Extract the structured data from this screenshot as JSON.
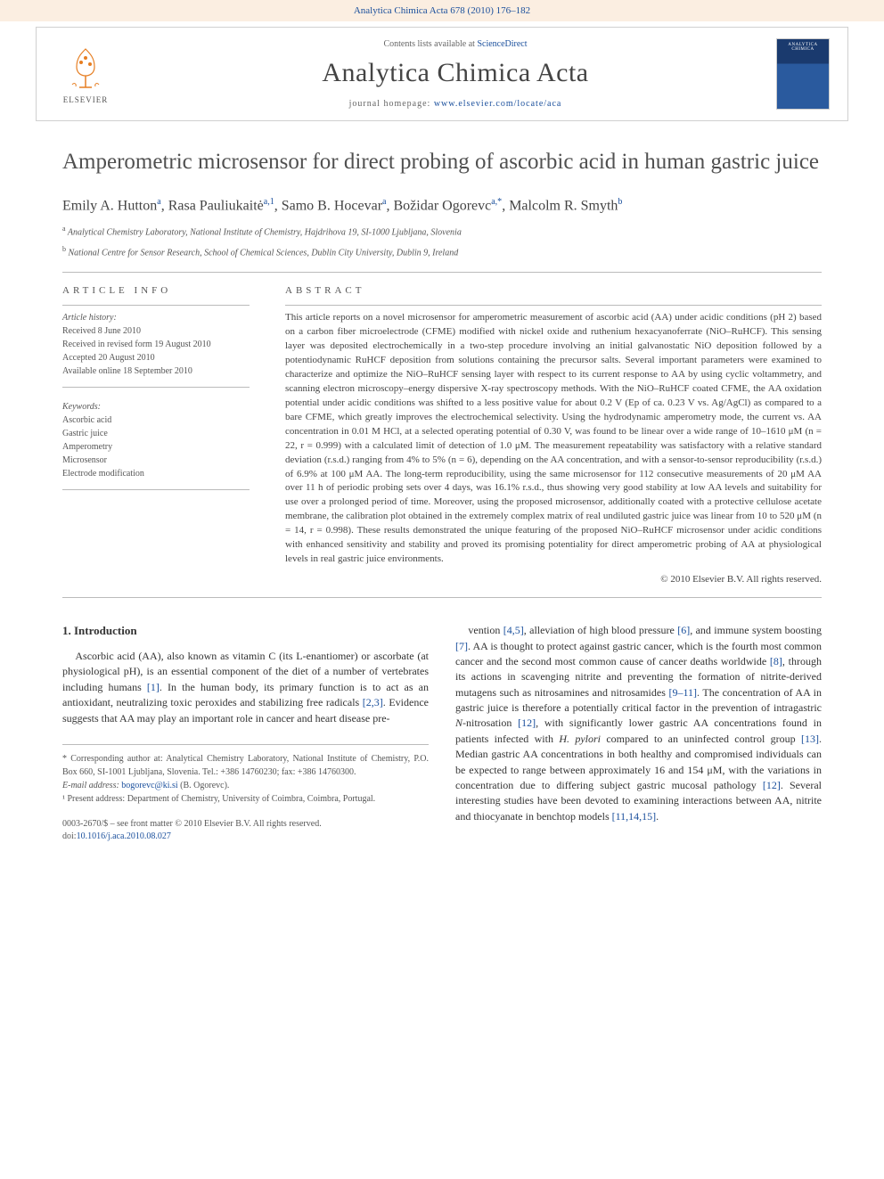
{
  "header": {
    "citation": "Analytica Chimica Acta 678 (2010) 176–182",
    "contents_prefix": "Contents lists available at ",
    "contents_link": "ScienceDirect",
    "journal_name": "Analytica Chimica Acta",
    "homepage_prefix": "journal homepage: ",
    "homepage_url": "www.elsevier.com/locate/aca",
    "publisher": "ELSEVIER"
  },
  "article": {
    "title": "Amperometric microsensor for direct probing of ascorbic acid in human gastric juice",
    "authors_html": "Emily A. Hutton<sup>a</sup>, Rasa Pauliukaitė<sup>a,1</sup>, Samo B. Hocevar<sup>a</sup>, Božidar Ogorevc<sup>a,*</sup>, Malcolm R. Smyth<sup>b</sup>",
    "affil_a": "Analytical Chemistry Laboratory, National Institute of Chemistry, Hajdrihova 19, SI-1000 Ljubljana, Slovenia",
    "affil_b": "National Centre for Sensor Research, School of Chemical Sciences, Dublin City University, Dublin 9, Ireland"
  },
  "info": {
    "heading": "ARTICLE INFO",
    "history_label": "Article history:",
    "received": "Received 8 June 2010",
    "revised": "Received in revised form 19 August 2010",
    "accepted": "Accepted 20 August 2010",
    "online": "Available online 18 September 2010",
    "keywords_label": "Keywords:",
    "kw1": "Ascorbic acid",
    "kw2": "Gastric juice",
    "kw3": "Amperometry",
    "kw4": "Microsensor",
    "kw5": "Electrode modification"
  },
  "abstract": {
    "heading": "ABSTRACT",
    "text": "This article reports on a novel microsensor for amperometric measurement of ascorbic acid (AA) under acidic conditions (pH 2) based on a carbon fiber microelectrode (CFME) modified with nickel oxide and ruthenium hexacyanoferrate (NiO–RuHCF). This sensing layer was deposited electrochemically in a two-step procedure involving an initial galvanostatic NiO deposition followed by a potentiodynamic RuHCF deposition from solutions containing the precursor salts. Several important parameters were examined to characterize and optimize the NiO–RuHCF sensing layer with respect to its current response to AA by using cyclic voltammetry, and scanning electron microscopy–energy dispersive X-ray spectroscopy methods. With the NiO–RuHCF coated CFME, the AA oxidation potential under acidic conditions was shifted to a less positive value for about 0.2 V (Ep of ca. 0.23 V vs. Ag/AgCl) as compared to a bare CFME, which greatly improves the electrochemical selectivity. Using the hydrodynamic amperometry mode, the current vs. AA concentration in 0.01 M HCl, at a selected operating potential of 0.30 V, was found to be linear over a wide range of 10–1610 μM (n = 22, r = 0.999) with a calculated limit of detection of 1.0 μM. The measurement repeatability was satisfactory with a relative standard deviation (r.s.d.) ranging from 4% to 5% (n = 6), depending on the AA concentration, and with a sensor-to-sensor reproducibility (r.s.d.) of 6.9% at 100 μM AA. The long-term reproducibility, using the same microsensor for 112 consecutive measurements of 20 μM AA over 11 h of periodic probing sets over 4 days, was 16.1% r.s.d., thus showing very good stability at low AA levels and suitability for use over a prolonged period of time. Moreover, using the proposed microsensor, additionally coated with a protective cellulose acetate membrane, the calibration plot obtained in the extremely complex matrix of real undiluted gastric juice was linear from 10 to 520 μM (n = 14, r = 0.998). These results demonstrated the unique featuring of the proposed NiO–RuHCF microsensor under acidic conditions with enhanced sensitivity and stability and proved its promising potentiality for direct amperometric probing of AA at physiological levels in real gastric juice environments.",
    "copyright": "© 2010 Elsevier B.V. All rights reserved."
  },
  "body": {
    "section_heading": "1. Introduction",
    "col1_para": "Ascorbic acid (AA), also known as vitamin C (its L-enantiomer) or ascorbate (at physiological pH), is an essential component of the diet of a number of vertebrates including humans [1]. In the human body, its primary function is to act as an antioxidant, neutralizing toxic peroxides and stabilizing free radicals [2,3]. Evidence suggests that AA may play an important role in cancer and heart disease pre-",
    "col2_para": "vention [4,5], alleviation of high blood pressure [6], and immune system boosting [7]. AA is thought to protect against gastric cancer, which is the fourth most common cancer and the second most common cause of cancer deaths worldwide [8], through its actions in scavenging nitrite and preventing the formation of nitrite-derived mutagens such as nitrosamines and nitrosamides [9–11]. The concentration of AA in gastric juice is therefore a potentially critical factor in the prevention of intragastric N-nitrosation [12], with significantly lower gastric AA concentrations found in patients infected with H. pylori compared to an uninfected control group [13]. Median gastric AA concentrations in both healthy and compromised individuals can be expected to range between approximately 16 and 154 μM, with the variations in concentration due to differing subject gastric mucosal pathology [12]. Several interesting studies have been devoted to examining interactions between AA, nitrite and thiocyanate in benchtop models [11,14,15]."
  },
  "footnotes": {
    "corresponding": "* Corresponding author at: Analytical Chemistry Laboratory, National Institute of Chemistry, P.O. Box 660, SI-1001 Ljubljana, Slovenia. Tel.: +386 14760230; fax: +386 14760300.",
    "email_label": "E-mail address: ",
    "email": "bogorevc@ki.si",
    "email_who": " (B. Ogorevc).",
    "present": "¹ Present address: Department of Chemistry, University of Coimbra, Coimbra, Portugal."
  },
  "doi": {
    "line1": "0003-2670/$ – see front matter © 2010 Elsevier B.V. All rights reserved.",
    "line2_label": "doi:",
    "line2_link": "10.1016/j.aca.2010.08.027"
  },
  "colors": {
    "link": "#1a4f9c",
    "strip_bg": "#fbeee1",
    "text": "#333333",
    "muted": "#555555"
  }
}
